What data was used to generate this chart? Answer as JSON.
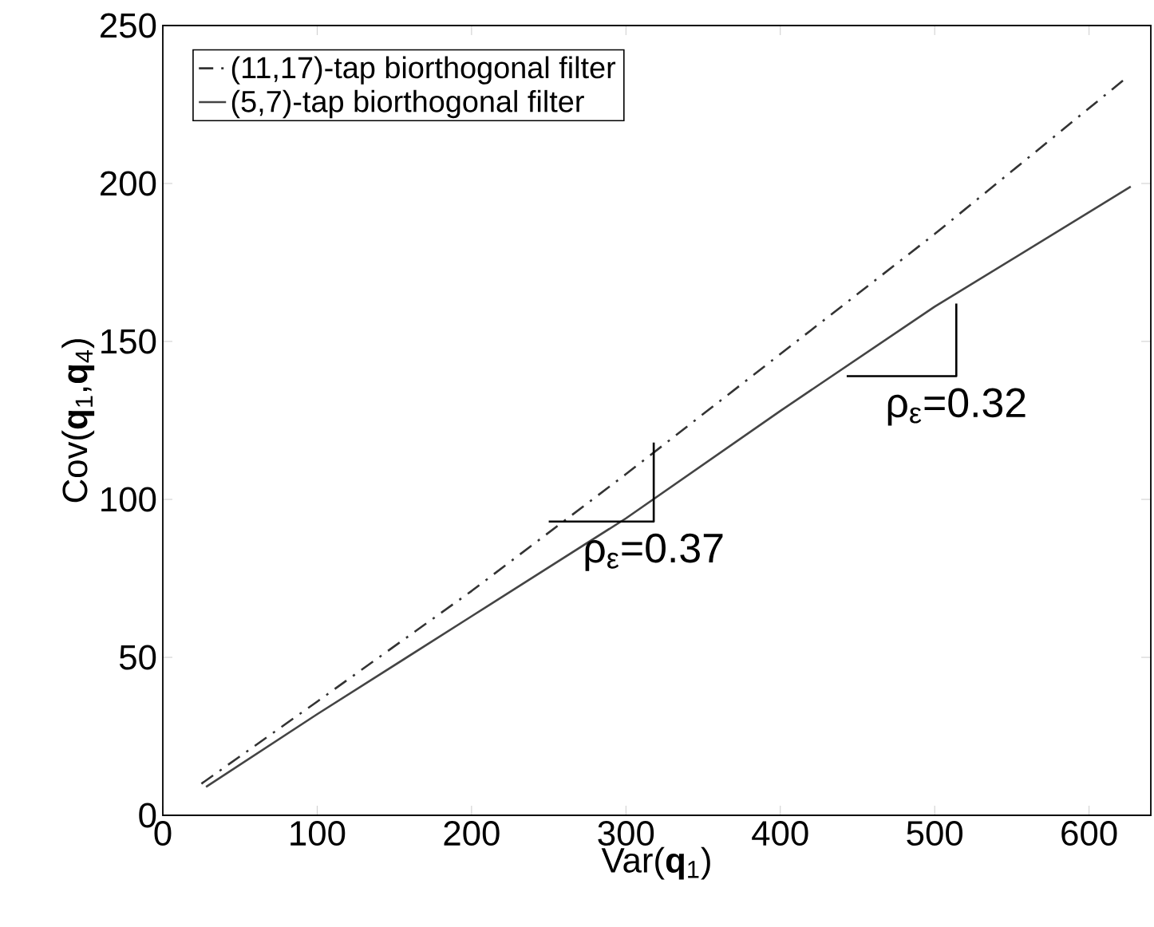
{
  "chart_data": {
    "type": "line",
    "xlabel": "Var(**q**$_{1}$)",
    "ylabel": "Cov(**q**$_{1}$,**q**$_{4}$)",
    "xlim": [
      0,
      640
    ],
    "ylim": [
      0,
      250
    ],
    "xticks": [
      0,
      100,
      200,
      300,
      400,
      500,
      600
    ],
    "yticks": [
      0,
      50,
      100,
      150,
      200,
      250
    ],
    "grid": false,
    "legend": "top left",
    "series": [
      {
        "name": "(11,17)-tap biorthogonal filter",
        "color": "#333333",
        "line_style": "dashdot",
        "x": [
          25,
          100,
          200,
          300,
          400,
          500,
          623
        ],
        "values": [
          10,
          36,
          71,
          108,
          146,
          184,
          233
        ]
      },
      {
        "name": "(5,7)-tap biorthogonal filter",
        "color": "#444444",
        "line_style": "solid",
        "x": [
          28,
          100,
          200,
          300,
          400,
          500,
          627
        ],
        "values": [
          9,
          32,
          63,
          94,
          128,
          161,
          199
        ]
      },
      {
        "color": "#000000",
        "line_style": "solid",
        "x": [
          250,
          318,
          318
        ],
        "values": [
          93,
          93,
          118
        ]
      },
      {
        "color": "#000000",
        "line_style": "solid",
        "x": [
          443,
          514,
          514
        ],
        "values": [
          139,
          139,
          162
        ]
      }
    ],
    "annotations": [
      "ρ$_{ε}$=0.37",
      "ρ$_{ε}$=0.32"
    ]
  }
}
